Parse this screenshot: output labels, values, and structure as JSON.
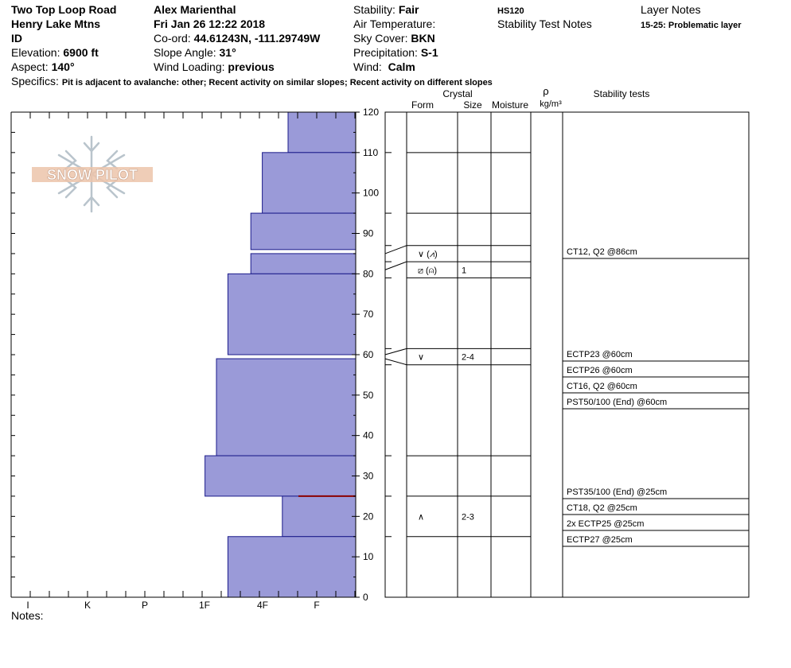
{
  "header": {
    "location": "Two Top Loop Road",
    "range": "Henry Lake Mtns",
    "state": "ID",
    "elevation_label": "Elevation:",
    "elevation": "6900 ft",
    "aspect_label": "Aspect:",
    "aspect": "140°",
    "observer": "Alex Marienthal",
    "datetime": "Fri Jan 26 12:22 2018",
    "coord_label": "Co-ord:",
    "coord": "44.61243N, -111.29749W",
    "slope_label": "Slope Angle:",
    "slope": "31°",
    "wind_loading_label": "Wind Loading:",
    "wind_loading": "previous",
    "stability_label": "Stability:",
    "stability": "Fair",
    "air_temp_label": "Air Temperature:",
    "sky_label": "Sky Cover:",
    "sky": "BKN",
    "precip_label": "Precipitation:",
    "precip": "S-1",
    "wind_label": "Wind:",
    "wind": "Calm",
    "hs": "HS120",
    "stability_test_notes": "Stability Test Notes",
    "layer_notes_title": "Layer Notes",
    "layer_note": "15-25: Problematic layer",
    "specifics_label": "Specifics:",
    "specifics": "Pit is adjacent to avalanche: other; Recent activity on similar slopes; Recent activity on different slopes"
  },
  "logo_text": "SNOW PILOT",
  "notes_label": "Notes:",
  "columns": {
    "crystal": "Crystal",
    "form": "Form",
    "size": "Size",
    "moisture": "Moisture",
    "rho": "ρ",
    "density_unit": "kg/m³",
    "stability_tests": "Stability tests"
  },
  "colors": {
    "hardness_fill": "#9a9ad8",
    "hardness_stroke": "#1a1a8a",
    "weak_layer": "#8b0000"
  },
  "chart_data": {
    "type": "bar",
    "title": "",
    "ylabel": "",
    "xlabel": "",
    "ylim": [
      0,
      120
    ],
    "y_ticks": [
      0,
      10,
      20,
      30,
      40,
      50,
      60,
      70,
      80,
      90,
      100,
      110,
      120
    ],
    "hardness_scale": [
      "I",
      "K",
      "P",
      "1F",
      "4F",
      "F"
    ],
    "orientation": "horizontal",
    "layers": [
      {
        "bottom": 110,
        "top": 120,
        "hardness": 0.5
      },
      {
        "bottom": 95,
        "top": 110,
        "hardness": 0.95
      },
      {
        "bottom": 86,
        "top": 95,
        "hardness": 1.15
      },
      {
        "bottom": 80,
        "top": 85,
        "hardness": 1.15
      },
      {
        "bottom": 60,
        "top": 80,
        "hardness": 1.55
      },
      {
        "bottom": 35,
        "top": 59,
        "hardness": 1.75
      },
      {
        "bottom": 25,
        "top": 35,
        "hardness": 1.95
      },
      {
        "bottom": 15,
        "top": 25,
        "hardness": 0.6
      },
      {
        "bottom": 0,
        "top": 15,
        "hardness": 1.55
      }
    ],
    "weak_layer_height": 25,
    "layer_boundaries": [
      120,
      110,
      95,
      87,
      83,
      79,
      61.5,
      57.5,
      35,
      25,
      15,
      0
    ],
    "crystal_rows": [
      {
        "height": 85,
        "form": "∨ (⩘)",
        "size": ""
      },
      {
        "height": 81,
        "form": "⧄ (⍝)",
        "size": "1"
      },
      {
        "height": 59.5,
        "form": "∨",
        "size": "2-4"
      },
      {
        "height": 20,
        "form": "∧",
        "size": "2-3"
      }
    ],
    "stability_tests": [
      {
        "height": 86,
        "text": "CT12, Q2 @86cm"
      },
      {
        "height": 60,
        "text": "ECTP23 @60cm"
      },
      {
        "height": 60,
        "text": "ECTP26 @60cm"
      },
      {
        "height": 60,
        "text": "CT16, Q2 @60cm"
      },
      {
        "height": 60,
        "text": "PST50/100 (End) @60cm"
      },
      {
        "height": 25,
        "text": "PST35/100 (End) @25cm"
      },
      {
        "height": 25,
        "text": "CT18, Q2 @25cm"
      },
      {
        "height": 25,
        "text": "2x ECTP25 @25cm"
      },
      {
        "height": 25,
        "text": "ECTP27 @25cm"
      }
    ]
  }
}
